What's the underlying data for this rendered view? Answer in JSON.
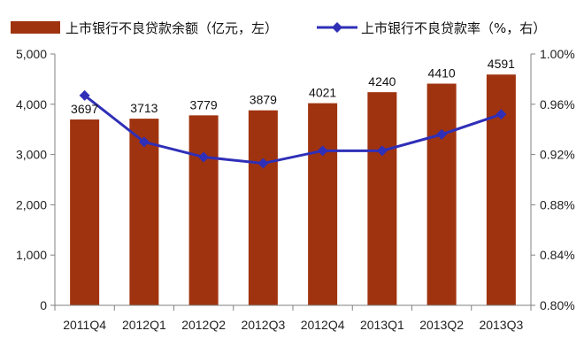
{
  "chart_data": {
    "type": "bar+line",
    "categories": [
      "2011Q4",
      "2012Q1",
      "2012Q2",
      "2012Q3",
      "2012Q4",
      "2013Q1",
      "2013Q2",
      "2013Q3"
    ],
    "series": [
      {
        "name": "上市银行不良贷款余额（亿元，左）",
        "type": "bar",
        "axis": "left",
        "values": [
          3697,
          3713,
          3779,
          3879,
          4021,
          4240,
          4410,
          4591
        ],
        "data_labels": [
          "3697",
          "3713",
          "3779",
          "3879",
          "4021",
          "4240",
          "4410",
          "4591"
        ]
      },
      {
        "name": "上市银行不良贷款率（%，右）",
        "type": "line",
        "axis": "right",
        "values": [
          0.967,
          0.93,
          0.918,
          0.913,
          0.923,
          0.923,
          0.936,
          0.952
        ]
      }
    ],
    "y_left": {
      "range": [
        0,
        5000
      ],
      "ticks": [
        "0",
        "1,000",
        "2,000",
        "3,000",
        "4,000",
        "5,000"
      ]
    },
    "y_right": {
      "range": [
        0.8,
        1.0
      ],
      "ticks": [
        "0.80%",
        "0.84%",
        "0.88%",
        "0.92%",
        "0.96%",
        "1.00%"
      ]
    },
    "grid": false,
    "legend_position": "top",
    "colors": {
      "bar": "#a0330f",
      "line": "#2f2fb8",
      "axis": "#808080"
    }
  }
}
